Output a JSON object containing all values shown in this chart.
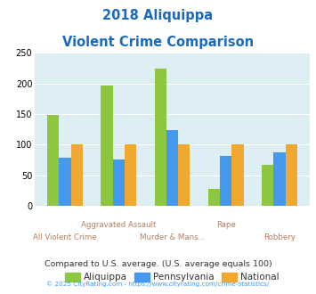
{
  "title_line1": "2018 Aliquippa",
  "title_line2": "Violent Crime Comparison",
  "categories": [
    "All Violent Crime",
    "Aggravated Assault",
    "Murder & Mans...",
    "Rape",
    "Robbery"
  ],
  "label_top": [
    "",
    "Aggravated Assault",
    "",
    "Rape",
    ""
  ],
  "label_bottom": [
    "All Violent Crime",
    "",
    "Murder & Mans...",
    "",
    "Robbery"
  ],
  "aliquippa": [
    148,
    197,
    225,
    27,
    67
  ],
  "pennsylvania": [
    79,
    76,
    124,
    81,
    88
  ],
  "national": [
    100,
    100,
    100,
    100,
    100
  ],
  "colors": {
    "aliquippa": "#8dc63f",
    "pennsylvania": "#4499ee",
    "national": "#f0a830"
  },
  "ylim": [
    0,
    250
  ],
  "yticks": [
    0,
    50,
    100,
    150,
    200,
    250
  ],
  "bg_color": "#ddeef5",
  "title_color": "#1a6abf",
  "xlabel_color": "#b08060",
  "legend_text_color": "#333333",
  "footer_text": "Compared to U.S. average. (U.S. average equals 100)",
  "footer_color": "#333333",
  "copyright_text": "© 2025 CityRating.com - https://www.cityrating.com/crime-statistics/",
  "copyright_color": "#4499ee",
  "legend_labels": [
    "Aliquippa",
    "Pennsylvania",
    "National"
  ]
}
